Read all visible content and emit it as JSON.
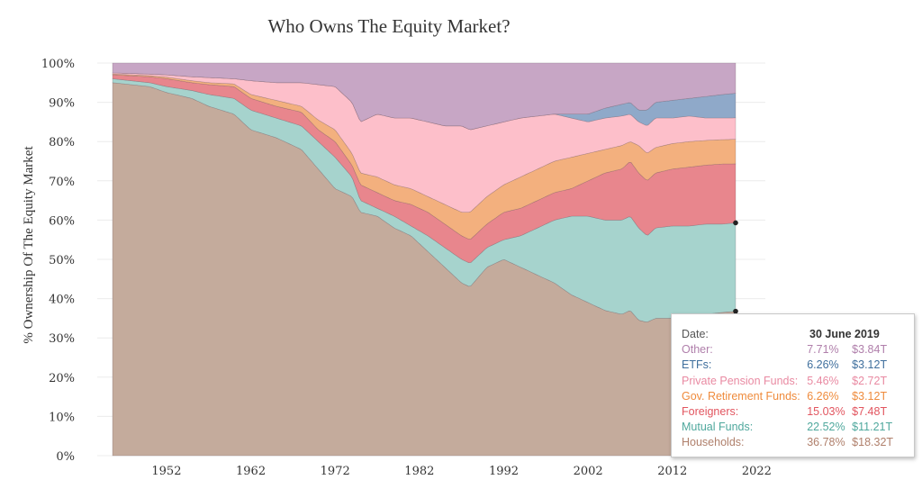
{
  "chart_data": {
    "type": "area",
    "stacked": true,
    "title": "Who Owns The Equity Market?",
    "ylabel": "% Ownership Of The Equity Market",
    "xlabel": "",
    "xlim": [
      1945.6,
      2019.5
    ],
    "ylim": [
      0,
      100
    ],
    "x_ticks": [
      1952,
      1962,
      1972,
      1982,
      1992,
      2002,
      2012,
      2022
    ],
    "y_ticks": [
      0,
      10,
      20,
      30,
      40,
      50,
      60,
      70,
      80,
      90,
      100
    ],
    "grid": true,
    "series": [
      {
        "label": "Households",
        "color": "#c4ab9c",
        "points": [
          [
            1945.6,
            95
          ],
          [
            1950,
            94
          ],
          [
            1952,
            92.5
          ],
          [
            1955,
            91
          ],
          [
            1957,
            89
          ],
          [
            1960,
            87
          ],
          [
            1962,
            83
          ],
          [
            1965,
            81
          ],
          [
            1968,
            78
          ],
          [
            1970,
            73
          ],
          [
            1972,
            68
          ],
          [
            1974,
            66
          ],
          [
            1975,
            62
          ],
          [
            1977,
            61
          ],
          [
            1979,
            58
          ],
          [
            1981,
            56
          ],
          [
            1983,
            52
          ],
          [
            1985,
            48
          ],
          [
            1987,
            44
          ],
          [
            1988,
            43
          ],
          [
            1990,
            48
          ],
          [
            1992,
            50
          ],
          [
            1994,
            48
          ],
          [
            1996,
            46
          ],
          [
            1998,
            44
          ],
          [
            2000,
            41
          ],
          [
            2002,
            39
          ],
          [
            2004,
            37
          ],
          [
            2006,
            36
          ],
          [
            2007,
            37
          ],
          [
            2008,
            34.5
          ],
          [
            2009,
            34
          ],
          [
            2010,
            35
          ],
          [
            2012,
            35
          ],
          [
            2014,
            35.5
          ],
          [
            2016,
            36
          ],
          [
            2018,
            36.5
          ],
          [
            2019.5,
            36.78
          ]
        ]
      },
      {
        "label": "Mutual Funds",
        "color": "#a6d3cd",
        "points": [
          [
            1945.6,
            96
          ],
          [
            1950,
            95
          ],
          [
            1952,
            94
          ],
          [
            1955,
            93
          ],
          [
            1957,
            92
          ],
          [
            1960,
            91
          ],
          [
            1962,
            88
          ],
          [
            1965,
            86
          ],
          [
            1968,
            84
          ],
          [
            1970,
            80
          ],
          [
            1972,
            76
          ],
          [
            1974,
            71
          ],
          [
            1975,
            65
          ],
          [
            1977,
            63
          ],
          [
            1979,
            61
          ],
          [
            1981,
            58.5
          ],
          [
            1983,
            56
          ],
          [
            1985,
            53
          ],
          [
            1987,
            50
          ],
          [
            1988,
            49
          ],
          [
            1990,
            53
          ],
          [
            1992,
            55
          ],
          [
            1994,
            56
          ],
          [
            1996,
            58
          ],
          [
            1998,
            60
          ],
          [
            2000,
            61
          ],
          [
            2002,
            61
          ],
          [
            2004,
            60
          ],
          [
            2006,
            60
          ],
          [
            2007,
            61
          ],
          [
            2008,
            58
          ],
          [
            2009,
            56
          ],
          [
            2010,
            58
          ],
          [
            2012,
            58.5
          ],
          [
            2014,
            58.5
          ],
          [
            2016,
            59
          ],
          [
            2018,
            59
          ],
          [
            2019.5,
            59.3
          ]
        ]
      },
      {
        "label": "Foreigners",
        "color": "#e8868d",
        "points": [
          [
            1945.6,
            97
          ],
          [
            1950,
            96.5
          ],
          [
            1952,
            96
          ],
          [
            1955,
            95
          ],
          [
            1957,
            94.5
          ],
          [
            1960,
            94
          ],
          [
            1962,
            91
          ],
          [
            1965,
            89
          ],
          [
            1968,
            87.5
          ],
          [
            1970,
            83
          ],
          [
            1972,
            80
          ],
          [
            1974,
            74
          ],
          [
            1975,
            69
          ],
          [
            1977,
            67
          ],
          [
            1979,
            65
          ],
          [
            1981,
            64
          ],
          [
            1983,
            62
          ],
          [
            1985,
            59
          ],
          [
            1987,
            56
          ],
          [
            1988,
            55
          ],
          [
            1990,
            59
          ],
          [
            1992,
            62
          ],
          [
            1994,
            63
          ],
          [
            1996,
            65
          ],
          [
            1998,
            67
          ],
          [
            2000,
            68
          ],
          [
            2002,
            70
          ],
          [
            2004,
            72
          ],
          [
            2006,
            73
          ],
          [
            2007,
            75
          ],
          [
            2008,
            72
          ],
          [
            2009,
            70
          ],
          [
            2010,
            72
          ],
          [
            2012,
            73
          ],
          [
            2014,
            73.5
          ],
          [
            2016,
            74
          ],
          [
            2018,
            74.3
          ],
          [
            2019.5,
            74.33
          ]
        ]
      },
      {
        "label": "Gov. Retirement Funds",
        "color": "#f3b07e",
        "points": [
          [
            1945.6,
            97.2
          ],
          [
            1950,
            96.8
          ],
          [
            1952,
            96.4
          ],
          [
            1955,
            95.5
          ],
          [
            1957,
            95
          ],
          [
            1960,
            94.7
          ],
          [
            1962,
            92
          ],
          [
            1965,
            90.5
          ],
          [
            1968,
            89
          ],
          [
            1970,
            85.5
          ],
          [
            1972,
            83
          ],
          [
            1974,
            77
          ],
          [
            1975,
            72
          ],
          [
            1977,
            71
          ],
          [
            1979,
            69
          ],
          [
            1981,
            68
          ],
          [
            1983,
            66
          ],
          [
            1985,
            64
          ],
          [
            1987,
            62
          ],
          [
            1988,
            62
          ],
          [
            1990,
            66
          ],
          [
            1992,
            69
          ],
          [
            1994,
            71
          ],
          [
            1996,
            73
          ],
          [
            1998,
            75
          ],
          [
            2000,
            76
          ],
          [
            2002,
            77
          ],
          [
            2004,
            78
          ],
          [
            2006,
            79
          ],
          [
            2007,
            80
          ],
          [
            2008,
            79
          ],
          [
            2009,
            77
          ],
          [
            2010,
            78.5
          ],
          [
            2012,
            79.5
          ],
          [
            2014,
            80
          ],
          [
            2016,
            80.3
          ],
          [
            2018,
            80.5
          ],
          [
            2019.5,
            80.59
          ]
        ]
      },
      {
        "label": "Private Pension Funds",
        "color": "#fdbfca",
        "points": [
          [
            1945.6,
            97.5
          ],
          [
            1950,
            97.2
          ],
          [
            1952,
            97
          ],
          [
            1955,
            96.5
          ],
          [
            1957,
            96.3
          ],
          [
            1960,
            96
          ],
          [
            1962,
            95.5
          ],
          [
            1965,
            95
          ],
          [
            1968,
            95
          ],
          [
            1970,
            94.5
          ],
          [
            1972,
            94
          ],
          [
            1974,
            90
          ],
          [
            1975,
            85
          ],
          [
            1977,
            87
          ],
          [
            1979,
            86
          ],
          [
            1981,
            86
          ],
          [
            1983,
            85
          ],
          [
            1985,
            84
          ],
          [
            1987,
            84
          ],
          [
            1988,
            83
          ],
          [
            1990,
            84
          ],
          [
            1992,
            85
          ],
          [
            1994,
            86
          ],
          [
            1996,
            86.5
          ],
          [
            1998,
            87
          ],
          [
            2000,
            86
          ],
          [
            2002,
            85
          ],
          [
            2004,
            86
          ],
          [
            2006,
            86.5
          ],
          [
            2007,
            87
          ],
          [
            2008,
            85
          ],
          [
            2009,
            84
          ],
          [
            2010,
            86
          ],
          [
            2012,
            86
          ],
          [
            2014,
            86.5
          ],
          [
            2016,
            86
          ],
          [
            2018,
            86
          ],
          [
            2019.5,
            86.05
          ]
        ]
      },
      {
        "label": "ETFs",
        "color": "#8fa9c9",
        "points": [
          [
            1945.6,
            97.5
          ],
          [
            1950,
            97.2
          ],
          [
            1952,
            97
          ],
          [
            1955,
            96.5
          ],
          [
            1957,
            96.3
          ],
          [
            1960,
            96
          ],
          [
            1962,
            95.5
          ],
          [
            1965,
            95
          ],
          [
            1968,
            95
          ],
          [
            1970,
            94.5
          ],
          [
            1972,
            94
          ],
          [
            1974,
            90
          ],
          [
            1975,
            85
          ],
          [
            1977,
            87
          ],
          [
            1979,
            86
          ],
          [
            1981,
            86
          ],
          [
            1983,
            85
          ],
          [
            1985,
            84
          ],
          [
            1987,
            84
          ],
          [
            1988,
            83
          ],
          [
            1990,
            84
          ],
          [
            1992,
            85
          ],
          [
            1994,
            86
          ],
          [
            1996,
            86.5
          ],
          [
            1998,
            87
          ],
          [
            2000,
            87
          ],
          [
            2002,
            87
          ],
          [
            2004,
            88.5
          ],
          [
            2006,
            89.5
          ],
          [
            2007,
            90
          ],
          [
            2008,
            88
          ],
          [
            2009,
            88
          ],
          [
            2010,
            90
          ],
          [
            2012,
            90.5
          ],
          [
            2014,
            91
          ],
          [
            2016,
            91.5
          ],
          [
            2018,
            92
          ],
          [
            2019.5,
            92.3
          ]
        ]
      },
      {
        "label": "Other",
        "color": "#c7a6c5",
        "points": [
          [
            1945.6,
            100
          ],
          [
            2019.5,
            100
          ]
        ]
      }
    ],
    "markers": [
      [
        2019.5,
        59.3
      ],
      [
        2019.5,
        36.78
      ]
    ],
    "tooltip": {
      "date_label": "Date:",
      "date_value": "30 June 2019",
      "rows": [
        {
          "label": "Other:",
          "pct": "7.71%",
          "value": "$3.84T",
          "color": "#b07fab"
        },
        {
          "label": "ETFs:",
          "pct": "6.26%",
          "value": "$3.12T",
          "color": "#3f6f9d"
        },
        {
          "label": "Private Pension Funds:",
          "pct": "5.46%",
          "value": "$2.72T",
          "color": "#e98aa2"
        },
        {
          "label": "Gov. Retirement Funds:",
          "pct": "6.26%",
          "value": "$3.12T",
          "color": "#ef8b3c"
        },
        {
          "label": "Foreigners:",
          "pct": "15.03%",
          "value": "$7.48T",
          "color": "#e2555f"
        },
        {
          "label": "Mutual Funds:",
          "pct": "22.52%",
          "value": "$11.21T",
          "color": "#4fa89d"
        },
        {
          "label": "Households:",
          "pct": "36.78%",
          "value": "$18.32T",
          "color": "#b0806c"
        }
      ]
    }
  }
}
